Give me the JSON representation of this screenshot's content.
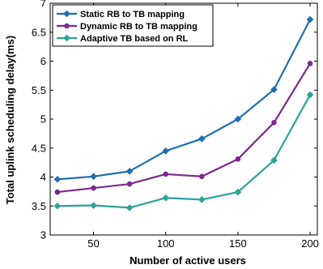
{
  "chart_data": {
    "type": "line",
    "xlabel": "Number of active users",
    "ylabel": "Total uplink scheduling delay(ms)",
    "x": [
      25,
      50,
      75,
      100,
      125,
      150,
      175,
      200
    ],
    "xlim": [
      20,
      205
    ],
    "ylim": [
      3,
      7
    ],
    "xticks": [
      50,
      100,
      150,
      200
    ],
    "yticks": [
      3,
      3.5,
      4,
      4.5,
      5,
      5.5,
      6,
      6.5,
      7
    ],
    "grid": false,
    "legend_position": "top-left",
    "series": [
      {
        "name": "Static RB to TB mapping",
        "color": "#1f6fb2",
        "marker": "diamond",
        "values": [
          3.96,
          4.01,
          4.1,
          4.45,
          4.66,
          5.0,
          5.51,
          6.72
        ]
      },
      {
        "name": "Dynamic RB to TB mapping",
        "color": "#7b2a8e",
        "marker": "circle",
        "values": [
          3.74,
          3.81,
          3.88,
          4.05,
          4.01,
          4.31,
          4.94,
          5.96
        ]
      },
      {
        "name": "Adaptive TB based on RL",
        "color": "#2aa29a",
        "marker": "diamond",
        "values": [
          3.5,
          3.51,
          3.47,
          3.64,
          3.61,
          3.74,
          4.29,
          5.42
        ]
      }
    ]
  }
}
